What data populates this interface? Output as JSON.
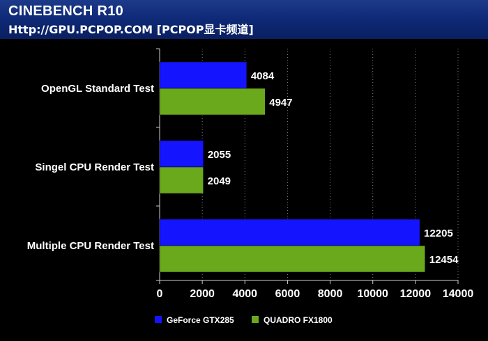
{
  "header": {
    "title": "CINEBENCH R10",
    "subtitle": "Http://GPU.PCPOP.COM [PCPOP显卡频道]"
  },
  "chart_data": {
    "type": "bar",
    "orientation": "horizontal",
    "categories": [
      "OpenGL Standard Test",
      "Singel CPU Render Test",
      "Multiple CPU Render Test"
    ],
    "series": [
      {
        "name": "GeForce GTX285",
        "values": [
          4084,
          2055,
          12205
        ],
        "color": "#1414ff"
      },
      {
        "name": "QUADRO FX1800",
        "values": [
          4947,
          2049,
          12454
        ],
        "color": "#6aa81c"
      }
    ],
    "xlim": [
      0,
      14000
    ],
    "xticks": [
      0,
      2000,
      4000,
      6000,
      8000,
      10000,
      12000,
      14000
    ],
    "grid": true,
    "legend": "bottom"
  },
  "colors": {
    "background": "#000000",
    "header": "#0f2a78",
    "grid": "#7f7f7f",
    "axis": "#cccccc"
  }
}
